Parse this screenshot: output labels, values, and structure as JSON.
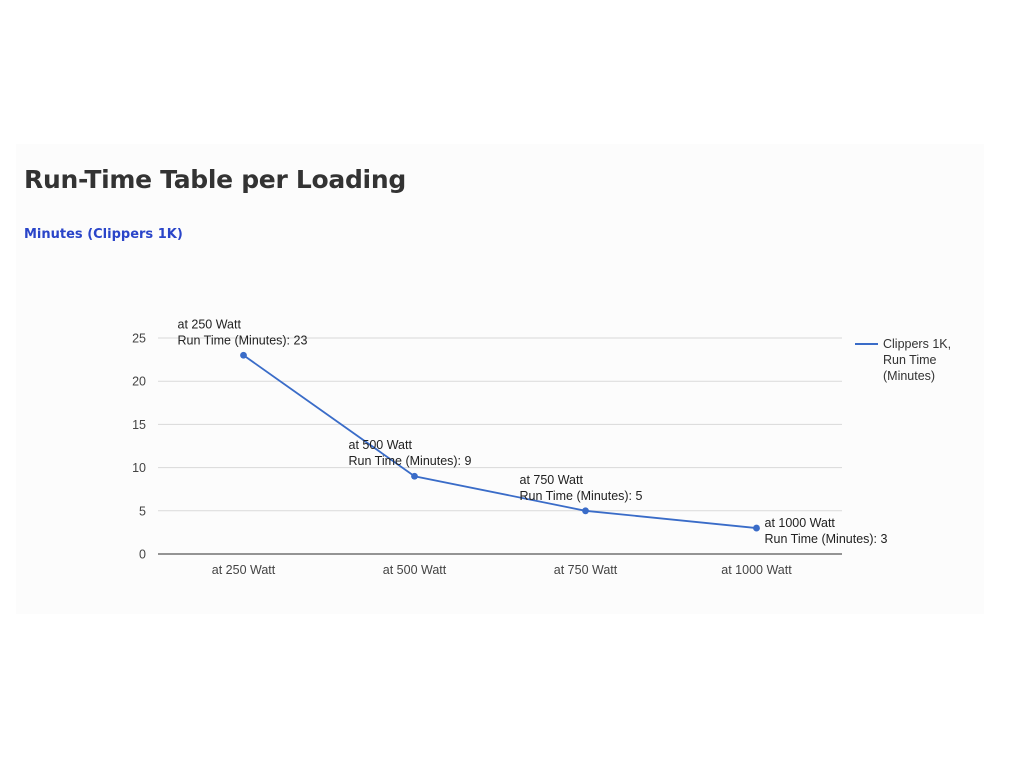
{
  "header": {
    "title": "Run-Time Table per Loading",
    "subtitle": "Minutes (Clippers 1K)"
  },
  "chart_data": {
    "type": "line",
    "categories": [
      "at 250 Watt",
      "at 500 Watt",
      "at 750 Watt",
      "at 1000 Watt"
    ],
    "series": [
      {
        "name": "Clippers 1K, Run Time (Minutes)",
        "values": [
          23,
          9,
          5,
          3
        ],
        "color": "#3a6cc8"
      }
    ],
    "legend_lines": [
      "Clippers 1K,",
      "Run Time",
      "(Minutes)"
    ],
    "legend_position": "right",
    "data_label_prefix": "Run Time (Minutes): ",
    "yticks": [
      0,
      5,
      10,
      15,
      20,
      25
    ],
    "ylim": [
      0,
      25
    ],
    "grid": true
  }
}
